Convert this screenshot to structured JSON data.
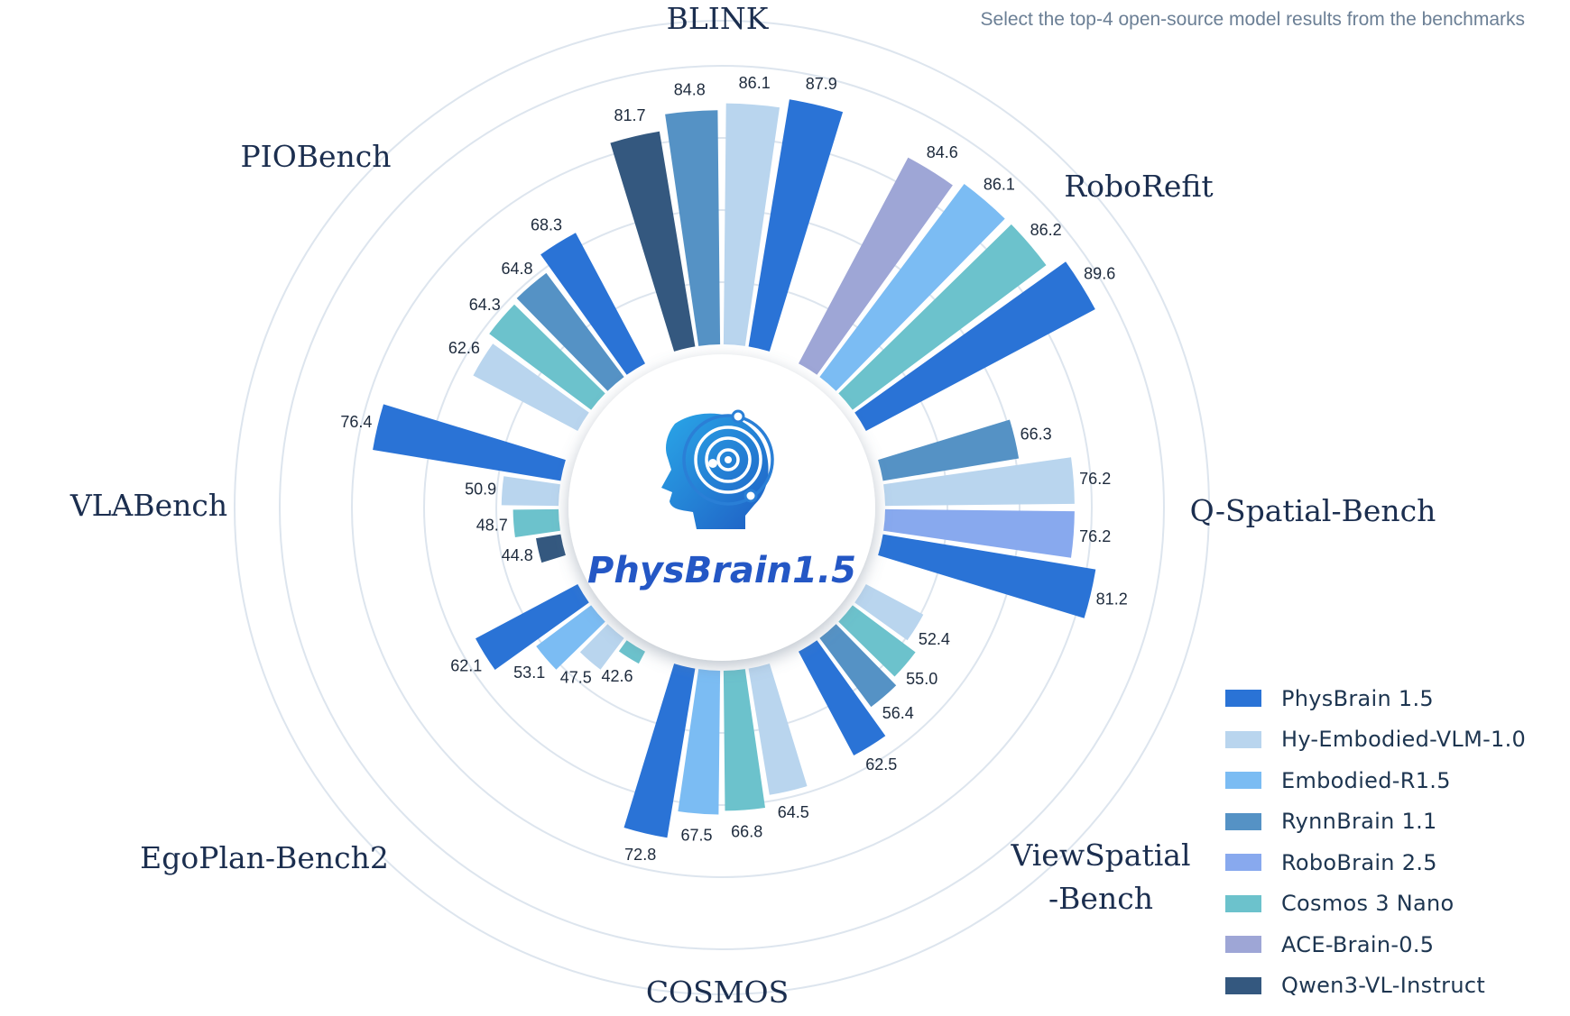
{
  "note": "Select the top-4 open-source model results from the benchmarks",
  "brand": "PhysBrain1.5",
  "colors": {
    "PhysBrain 1.5": "#2a73d6",
    "Hy-Embodied-VLM-1.0": "#b9d5ee",
    "Embodied-R1.5": "#7bbcf3",
    "RynnBrain 1.1": "#5592c5",
    "RoboBrain 2.5": "#88a9ee",
    "Cosmos 3 Nano": "#6cc2cc",
    "ACE-Brain-0.5": "#9ea6d6",
    "Qwen3-VL-Instruct": "#34587f"
  },
  "legend": [
    "PhysBrain 1.5",
    "Hy-Embodied-VLM-1.0",
    "Embodied-R1.5",
    "RynnBrain 1.1",
    "RoboBrain 2.5",
    "Cosmos 3 Nano",
    "ACE-Brain-0.5",
    "Qwen3-VL-Instruct"
  ],
  "chart_data": {
    "type": "bar",
    "layout": "radial",
    "title": "",
    "grid": true,
    "legend_position": "bottom-right",
    "benchmarks": [
      {
        "name": "BLINK",
        "label_lines": [
          "BLINK"
        ],
        "bars": [
          {
            "model": "Qwen3-VL-Instruct",
            "value": 81.7
          },
          {
            "model": "RynnBrain 1.1",
            "value": 84.8
          },
          {
            "model": "Hy-Embodied-VLM-1.0",
            "value": 86.1
          },
          {
            "model": "PhysBrain 1.5",
            "value": 87.9
          }
        ]
      },
      {
        "name": "RoboRefit",
        "label_lines": [
          "RoboRefit"
        ],
        "bars": [
          {
            "model": "ACE-Brain-0.5",
            "value": 84.6
          },
          {
            "model": "Embodied-R1.5",
            "value": 86.1
          },
          {
            "model": "Cosmos 3 Nano",
            "value": 86.2
          },
          {
            "model": "PhysBrain 1.5",
            "value": 89.6
          }
        ]
      },
      {
        "name": "Q-Spatial-Bench",
        "label_lines": [
          "Q-Spatial-Bench"
        ],
        "bars": [
          {
            "model": "RynnBrain 1.1",
            "value": 66.3
          },
          {
            "model": "Hy-Embodied-VLM-1.0",
            "value": 76.2
          },
          {
            "model": "RoboBrain 2.5",
            "value": 76.2
          },
          {
            "model": "PhysBrain 1.5",
            "value": 81.2
          }
        ]
      },
      {
        "name": "ViewSpatial-Bench",
        "label_lines": [
          "ViewSpatial",
          "-Bench"
        ],
        "bars": [
          {
            "model": "Hy-Embodied-VLM-1.0",
            "value": 52.4
          },
          {
            "model": "Cosmos 3 Nano",
            "value": 55.0
          },
          {
            "model": "RynnBrain 1.1",
            "value": 56.4
          },
          {
            "model": "PhysBrain 1.5",
            "value": 62.5
          }
        ]
      },
      {
        "name": "COSMOS",
        "label_lines": [
          "COSMOS"
        ],
        "bars": [
          {
            "model": "Hy-Embodied-VLM-1.0",
            "value": 64.5
          },
          {
            "model": "Cosmos 3 Nano",
            "value": 66.8
          },
          {
            "model": "Embodied-R1.5",
            "value": 67.5
          },
          {
            "model": "PhysBrain 1.5",
            "value": 72.8
          }
        ]
      },
      {
        "name": "EgoPlan-Bench2",
        "label_lines": [
          "EgoPlan-Bench2"
        ],
        "bars": [
          {
            "model": "Cosmos 3 Nano",
            "value": 42.6
          },
          {
            "model": "Hy-Embodied-VLM-1.0",
            "value": 47.5
          },
          {
            "model": "Embodied-R1.5",
            "value": 53.1
          },
          {
            "model": "PhysBrain 1.5",
            "value": 62.1
          }
        ]
      },
      {
        "name": "VLABench",
        "label_lines": [
          "VLABench"
        ],
        "bars": [
          {
            "model": "Qwen3-VL-Instruct",
            "value": 44.8
          },
          {
            "model": "Cosmos 3 Nano",
            "value": 48.7
          },
          {
            "model": "Hy-Embodied-VLM-1.0",
            "value": 50.9
          },
          {
            "model": "PhysBrain 1.5",
            "value": 76.4
          }
        ]
      },
      {
        "name": "PIOBench",
        "label_lines": [
          "PIOBench"
        ],
        "bars": [
          {
            "model": "Hy-Embodied-VLM-1.0",
            "value": 62.6
          },
          {
            "model": "Cosmos 3 Nano",
            "value": 64.3
          },
          {
            "model": "RynnBrain 1.1",
            "value": 64.8
          },
          {
            "model": "PhysBrain 1.5",
            "value": 68.3
          }
        ]
      }
    ]
  }
}
